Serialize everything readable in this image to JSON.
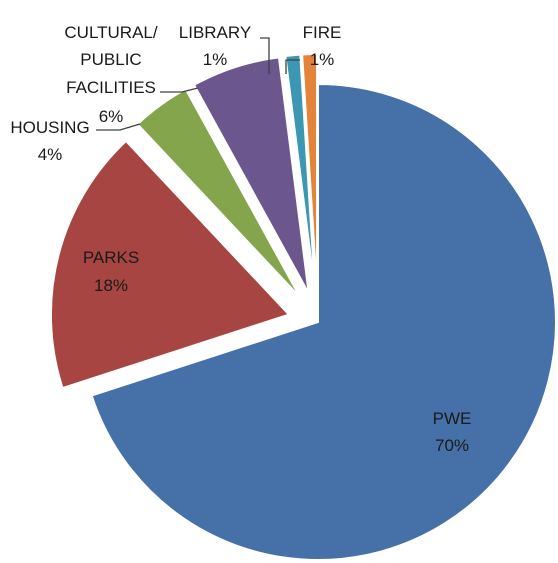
{
  "chart_data": {
    "type": "pie",
    "slices": [
      {
        "label": "PWE",
        "percent_label": "70%",
        "value": 70,
        "color": "#4670a8"
      },
      {
        "label": "PARKS",
        "percent_label": "18%",
        "value": 18,
        "color": "#a64541"
      },
      {
        "label": "HOUSING",
        "percent_label": "4%",
        "value": 4,
        "color": "#84a54b"
      },
      {
        "label": "CULTURAL/ PUBLIC FACILITIES",
        "percent_label": "6%",
        "value": 6,
        "color": "#6b568e"
      },
      {
        "label": "LIBRARY",
        "percent_label": "1%",
        "value": 1,
        "color": "#3c98b2"
      },
      {
        "label": "FIRE",
        "percent_label": "1%",
        "value": 1,
        "color": "#e3843a"
      }
    ],
    "exploded": true,
    "legend": "none"
  }
}
